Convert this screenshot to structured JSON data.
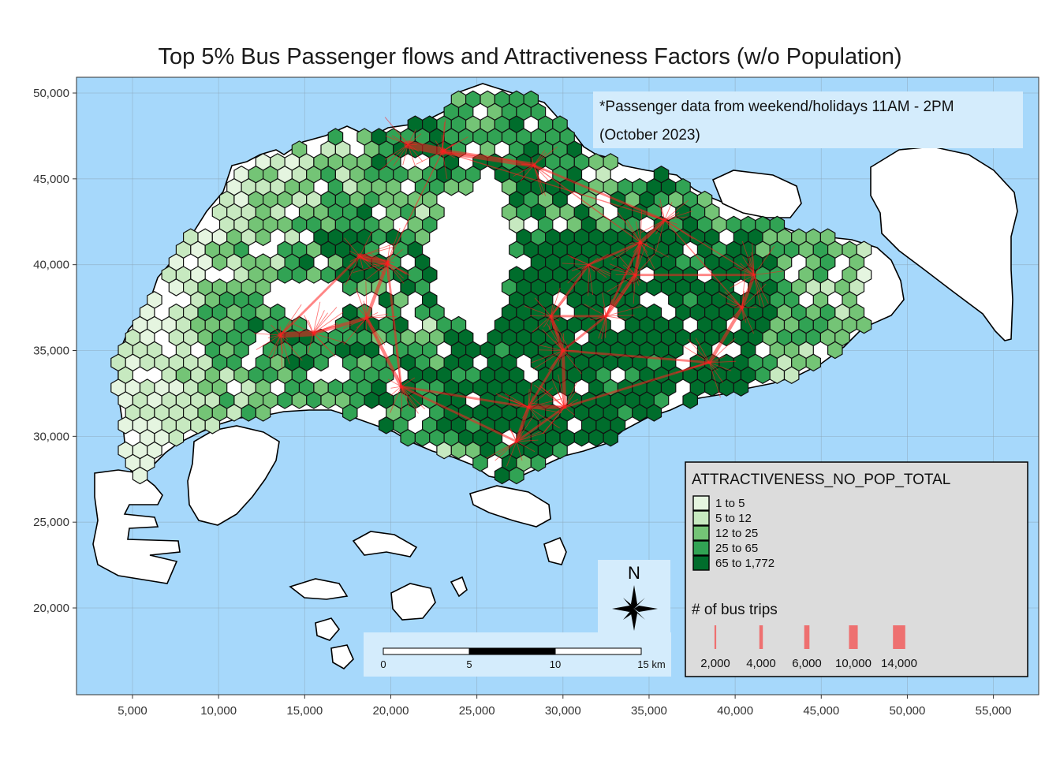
{
  "title": "Top 5% Bus Passenger flows and Attractiveness Factors (w/o Population)",
  "note": {
    "line1": "*Passenger data from weekend/holidays 11AM - 2PM",
    "line2": "(October 2023)"
  },
  "colors": {
    "sea": "#a6d8fb",
    "land": "#ffffff",
    "flow": "#ff2020",
    "legend_bg": "#dcdcdc",
    "note_bg": "#d4ecfc"
  },
  "chart_data": {
    "type": "map",
    "x_axis": {
      "range": [
        2000,
        57000
      ],
      "ticks": [
        5000,
        10000,
        15000,
        20000,
        25000,
        30000,
        35000,
        40000,
        45000,
        50000,
        55000
      ],
      "tick_labels": [
        "5,000",
        "10,000",
        "15,000",
        "20,000",
        "25,000",
        "30,000",
        "35,000",
        "40,000",
        "45,000",
        "50,000",
        "55,000"
      ]
    },
    "y_axis": {
      "range": [
        15000,
        51000
      ],
      "ticks": [
        20000,
        25000,
        30000,
        35000,
        40000,
        45000,
        50000
      ],
      "tick_labels": [
        "20,000",
        "25,000",
        "30,000",
        "35,000",
        "40,000",
        "45,000",
        "50,000"
      ]
    },
    "grid": true,
    "legend_placement": "bottom-right",
    "fill_legend": {
      "title": "ATTRACTIVENESS_NO_POP_TOTAL",
      "classes": [
        {
          "label": "1 to 5",
          "color": "#e5f5e0"
        },
        {
          "label": "5 to 12",
          "color": "#c7e9c0"
        },
        {
          "label": "12 to 25",
          "color": "#74c476"
        },
        {
          "label": "25 to 65",
          "color": "#31a354"
        },
        {
          "label": "65 to 1,772",
          "color": "#006d2c"
        }
      ]
    },
    "flow_legend": {
      "title": "# of bus trips",
      "values": [
        2000,
        4000,
        6000,
        10000,
        14000
      ],
      "labels": [
        "2,000",
        "4,000",
        "6,000",
        "10,000",
        "14,000"
      ]
    },
    "scale_bar": {
      "labels": [
        "0",
        "5",
        "10",
        "15 km"
      ]
    },
    "north_arrow": "N",
    "flow_hubs": [
      {
        "x": 23000,
        "y": 46600
      },
      {
        "x": 28300,
        "y": 45800
      },
      {
        "x": 35900,
        "y": 42600
      },
      {
        "x": 34500,
        "y": 41300
      },
      {
        "x": 19800,
        "y": 40100
      },
      {
        "x": 18200,
        "y": 40500
      },
      {
        "x": 13600,
        "y": 35900
      },
      {
        "x": 15500,
        "y": 36000
      },
      {
        "x": 18600,
        "y": 36900
      },
      {
        "x": 20600,
        "y": 32900
      },
      {
        "x": 30000,
        "y": 35000
      },
      {
        "x": 29300,
        "y": 37000
      },
      {
        "x": 32500,
        "y": 37000
      },
      {
        "x": 34200,
        "y": 39400
      },
      {
        "x": 40400,
        "y": 37500
      },
      {
        "x": 41100,
        "y": 39400
      },
      {
        "x": 38500,
        "y": 34300
      },
      {
        "x": 27300,
        "y": 29700
      },
      {
        "x": 30100,
        "y": 31700
      },
      {
        "x": 28000,
        "y": 31700
      },
      {
        "x": 21000,
        "y": 47000
      },
      {
        "x": 31500,
        "y": 40000
      }
    ],
    "flows": [
      [
        0,
        1,
        9000
      ],
      [
        0,
        20,
        14000
      ],
      [
        1,
        2,
        4000
      ],
      [
        2,
        3,
        6000
      ],
      [
        3,
        12,
        4000
      ],
      [
        3,
        13,
        6000
      ],
      [
        4,
        5,
        10000
      ],
      [
        4,
        8,
        6000
      ],
      [
        5,
        6,
        4000
      ],
      [
        6,
        7,
        10000
      ],
      [
        7,
        8,
        6000
      ],
      [
        8,
        9,
        6000
      ],
      [
        9,
        17,
        4000
      ],
      [
        10,
        11,
        6000
      ],
      [
        10,
        18,
        6000
      ],
      [
        11,
        12,
        4000
      ],
      [
        12,
        13,
        6000
      ],
      [
        13,
        15,
        4000
      ],
      [
        14,
        15,
        6000
      ],
      [
        14,
        16,
        6000
      ],
      [
        16,
        10,
        4000
      ],
      [
        17,
        19,
        6000
      ],
      [
        18,
        19,
        6000
      ],
      [
        18,
        16,
        4000
      ],
      [
        10,
        12,
        4000
      ],
      [
        9,
        19,
        4000
      ],
      [
        1,
        3,
        2000
      ],
      [
        0,
        4,
        2000
      ],
      [
        14,
        2,
        2000
      ],
      [
        11,
        21,
        4000
      ],
      [
        21,
        3,
        4000
      ],
      [
        2,
        15,
        2000
      ],
      [
        4,
        9,
        4000
      ],
      [
        17,
        18,
        4000
      ],
      [
        19,
        10,
        4000
      ],
      [
        0,
        2,
        2000
      ]
    ]
  }
}
